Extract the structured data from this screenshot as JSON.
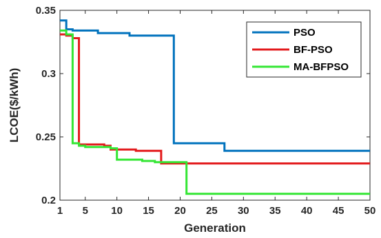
{
  "chart_data": {
    "type": "line",
    "title": "",
    "xlabel": "Generation",
    "ylabel": "LCOE($/kWh)",
    "xlim": [
      1,
      50
    ],
    "ylim": [
      0.2,
      0.35
    ],
    "xticks": [
      1,
      5,
      10,
      15,
      20,
      25,
      30,
      35,
      40,
      45,
      50
    ],
    "yticks": [
      0.2,
      0.25,
      0.3,
      0.35
    ],
    "ytick_labels": [
      "0.2",
      "0.25",
      "0.3",
      "0.35"
    ],
    "grid": false,
    "legend_position": "top-right",
    "series": [
      {
        "name": "PSO",
        "color": "#0072BD",
        "points": [
          [
            1,
            0.342
          ],
          [
            2,
            0.335
          ],
          [
            3,
            0.334
          ],
          [
            6,
            0.334
          ],
          [
            7,
            0.332
          ],
          [
            11,
            0.332
          ],
          [
            12,
            0.33
          ],
          [
            18,
            0.33
          ],
          [
            19,
            0.245
          ],
          [
            26,
            0.245
          ],
          [
            27,
            0.239
          ],
          [
            50,
            0.239
          ]
        ]
      },
      {
        "name": "BF-PSO",
        "color": "#E31A1C",
        "points": [
          [
            1,
            0.331
          ],
          [
            2,
            0.33
          ],
          [
            3,
            0.328
          ],
          [
            4,
            0.244
          ],
          [
            8,
            0.243
          ],
          [
            9,
            0.24
          ],
          [
            12,
            0.24
          ],
          [
            13,
            0.239
          ],
          [
            16,
            0.239
          ],
          [
            17,
            0.229
          ],
          [
            50,
            0.229
          ]
        ]
      },
      {
        "name": "MA-BFPSO",
        "color": "#33E633",
        "points": [
          [
            1,
            0.334
          ],
          [
            2,
            0.331
          ],
          [
            3,
            0.245
          ],
          [
            4,
            0.243
          ],
          [
            5,
            0.242
          ],
          [
            9,
            0.241
          ],
          [
            10,
            0.232
          ],
          [
            13,
            0.232
          ],
          [
            14,
            0.231
          ],
          [
            15,
            0.231
          ],
          [
            16,
            0.23
          ],
          [
            20,
            0.23
          ],
          [
            21,
            0.205
          ],
          [
            50,
            0.205
          ]
        ]
      }
    ]
  }
}
